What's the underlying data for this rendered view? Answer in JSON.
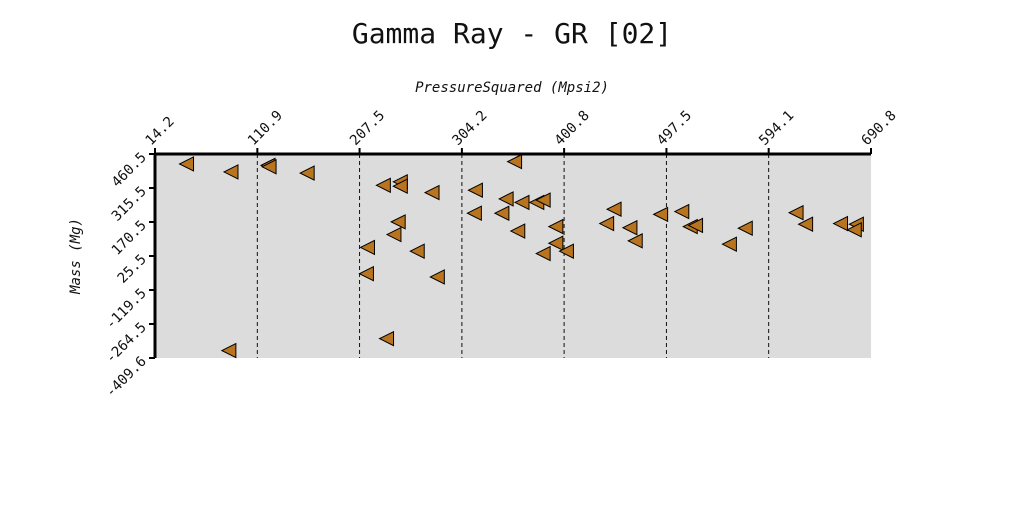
{
  "chart_data": {
    "type": "scatter",
    "title": "Gamma Ray - GR [02]",
    "xlabel": "PressureSquared (Mpsi2)",
    "ylabel": "Mass (Mg)",
    "xlim": [
      14.2,
      690.8
    ],
    "ylim": [
      -409.6,
      460.5
    ],
    "x_ticks": [
      "14.2",
      "110.9",
      "207.5",
      "304.2",
      "400.8",
      "497.5",
      "594.1",
      "690.8"
    ],
    "y_ticks": [
      "460.5",
      "315.5",
      "170.5",
      "25.5",
      "-119.5",
      "-264.5",
      "-409.6"
    ],
    "x_axis_position": "top",
    "grid": "vertical dashed",
    "marker": "left-triangle",
    "marker_color": "#b8741e",
    "background_color": "#dcdcdc",
    "points": [
      {
        "x": 44,
        "y": 418
      },
      {
        "x": 86,
        "y": 384
      },
      {
        "x": 121,
        "y": 412
      },
      {
        "x": 122,
        "y": 406
      },
      {
        "x": 158,
        "y": 379
      },
      {
        "x": 215,
        "y": 62
      },
      {
        "x": 214,
        "y": -50
      },
      {
        "x": 233,
        "y": -327
      },
      {
        "x": 240,
        "y": 117
      },
      {
        "x": 84,
        "y": -378
      },
      {
        "x": 230,
        "y": 327
      },
      {
        "x": 246,
        "y": 342
      },
      {
        "x": 246,
        "y": 323
      },
      {
        "x": 244,
        "y": 171
      },
      {
        "x": 276,
        "y": 296
      },
      {
        "x": 262,
        "y": 46
      },
      {
        "x": 281,
        "y": -64
      },
      {
        "x": 317,
        "y": 306
      },
      {
        "x": 316,
        "y": 208
      },
      {
        "x": 346,
        "y": 269
      },
      {
        "x": 361,
        "y": 254
      },
      {
        "x": 375,
        "y": 254
      },
      {
        "x": 381,
        "y": 264
      },
      {
        "x": 342,
        "y": 208
      },
      {
        "x": 354,
        "y": 428
      },
      {
        "x": 357,
        "y": 132
      },
      {
        "x": 393,
        "y": 151
      },
      {
        "x": 393,
        "y": 80
      },
      {
        "x": 381,
        "y": 36
      },
      {
        "x": 403,
        "y": 46
      },
      {
        "x": 441,
        "y": 164
      },
      {
        "x": 448,
        "y": 225
      },
      {
        "x": 463,
        "y": 146
      },
      {
        "x": 468,
        "y": 90
      },
      {
        "x": 492,
        "y": 203
      },
      {
        "x": 512,
        "y": 215
      },
      {
        "x": 520,
        "y": 151
      },
      {
        "x": 525,
        "y": 156
      },
      {
        "x": 557,
        "y": 76
      },
      {
        "x": 572,
        "y": 144
      },
      {
        "x": 620,
        "y": 210
      },
      {
        "x": 629,
        "y": 161
      },
      {
        "x": 662,
        "y": 164
      },
      {
        "x": 677,
        "y": 161
      },
      {
        "x": 675,
        "y": 137
      }
    ]
  }
}
